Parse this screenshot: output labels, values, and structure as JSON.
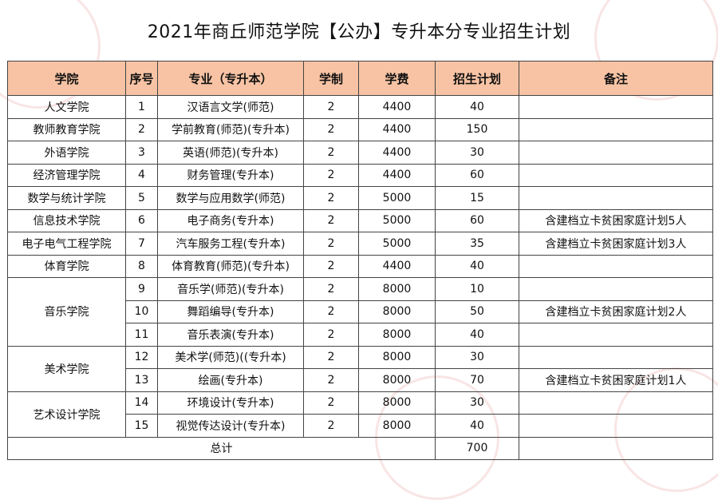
{
  "title": "2021年商丘师范学院【公办】专升本分专业招生计划",
  "headers": [
    "学院",
    "序号",
    "专业（专升本）",
    "学制",
    "学费",
    "招生计划",
    "备注"
  ],
  "rows": [
    {
      "college": "人文学院",
      "no": "1",
      "major": "汉语言文学(师范)",
      "years": "2",
      "fee": "4400",
      "plan": "40",
      "note": ""
    },
    {
      "college": "教师教育学院",
      "no": "2",
      "major": "学前教育(师范)(专升本)",
      "years": "2",
      "fee": "4400",
      "plan": "150",
      "note": ""
    },
    {
      "college": "外语学院",
      "no": "3",
      "major": "英语(师范)(专升本)",
      "years": "2",
      "fee": "4400",
      "plan": "30",
      "note": ""
    },
    {
      "college": "经济管理学院",
      "no": "4",
      "major": "财务管理(专升本)",
      "years": "2",
      "fee": "4400",
      "plan": "60",
      "note": ""
    },
    {
      "college": "数学与统计学院",
      "no": "5",
      "major": "数学与应用数学(师范)",
      "years": "2",
      "fee": "5000",
      "plan": "15",
      "note": ""
    },
    {
      "college": "信息技术学院",
      "no": "6",
      "major": "电子商务(专升本)",
      "years": "2",
      "fee": "5000",
      "plan": "60",
      "note": "含建档立卡贫困家庭计划5人"
    },
    {
      "college": "电子电气工程学院",
      "no": "7",
      "major": "汽车服务工程(专升本)",
      "years": "2",
      "fee": "5000",
      "plan": "35",
      "note": "含建档立卡贫困家庭计划3人"
    },
    {
      "college": "体育学院",
      "no": "8",
      "major": "体育教育(师范)(专升本)",
      "years": "2",
      "fee": "4400",
      "plan": "40",
      "note": ""
    },
    {
      "college": "音乐学院",
      "no": "9",
      "major": "音乐学(师范)(专升本)",
      "years": "2",
      "fee": "8000",
      "plan": "10",
      "note": ""
    },
    {
      "college": "",
      "no": "10",
      "major": "舞蹈编导(专升本)",
      "years": "2",
      "fee": "8000",
      "plan": "50",
      "note": "含建档立卡贫困家庭计划2人"
    },
    {
      "college": "",
      "no": "11",
      "major": "音乐表演(专升本)",
      "years": "2",
      "fee": "8000",
      "plan": "40",
      "note": ""
    },
    {
      "college": "美术学院",
      "no": "12",
      "major": "美术学(师范)((专升本)",
      "years": "2",
      "fee": "8000",
      "plan": "30",
      "note": ""
    },
    {
      "college": "",
      "no": "13",
      "major": "绘画(专升本)",
      "years": "2",
      "fee": "8000",
      "plan": "70",
      "note": "含建档立卡贫困家庭计划1人"
    },
    {
      "college": "艺术设计学院",
      "no": "14",
      "major": "环境设计(专升本)",
      "years": "2",
      "fee": "8000",
      "plan": "30",
      "note": ""
    },
    {
      "college": "",
      "no": "15",
      "major": "视觉传达设计(专升本)",
      "years": "2",
      "fee": "8000",
      "plan": "40",
      "note": ""
    }
  ],
  "total": {
    "label": "总计",
    "plan": "700"
  },
  "colors": {
    "header_bg": "#f7c3a4",
    "border": "#444444"
  }
}
